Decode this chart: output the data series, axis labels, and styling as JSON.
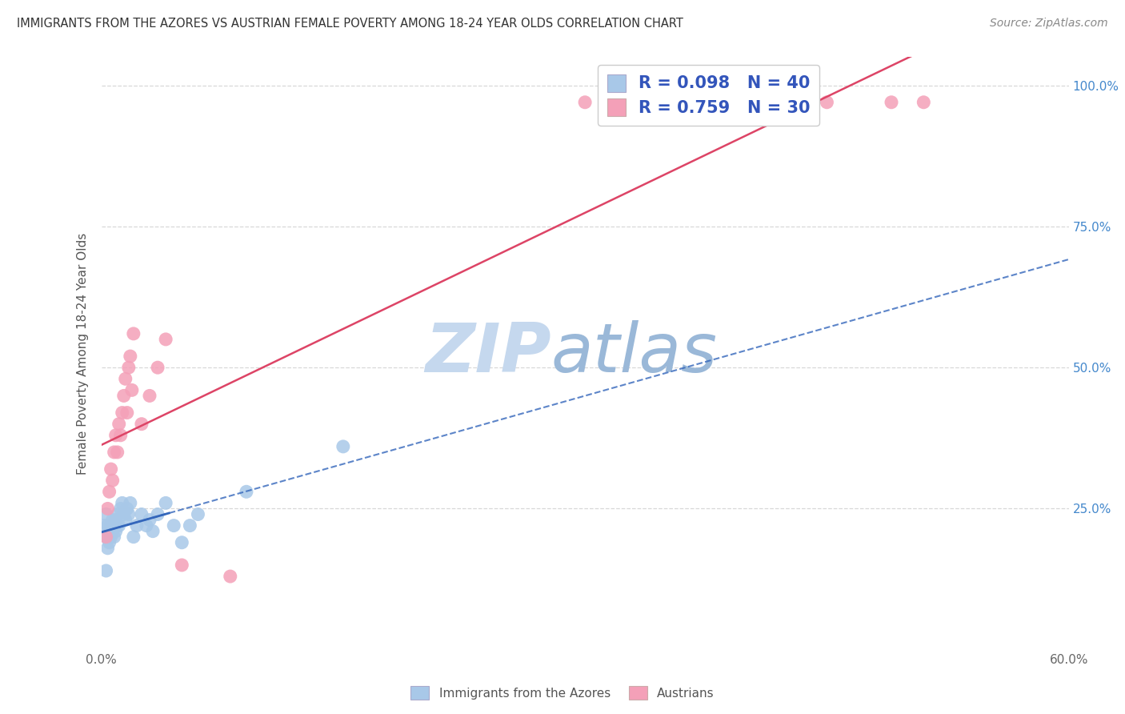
{
  "title": "IMMIGRANTS FROM THE AZORES VS AUSTRIAN FEMALE POVERTY AMONG 18-24 YEAR OLDS CORRELATION CHART",
  "source": "Source: ZipAtlas.com",
  "ylabel": "Female Poverty Among 18-24 Year Olds",
  "xlim": [
    0.0,
    0.6
  ],
  "ylim": [
    0.0,
    1.05
  ],
  "blue_R": 0.098,
  "blue_N": 40,
  "pink_R": 0.759,
  "pink_N": 30,
  "blue_color": "#a8c8e8",
  "pink_color": "#f4a0b8",
  "blue_line_color": "#3366bb",
  "pink_line_color": "#dd4466",
  "legend_color": "#3355bb",
  "watermark_zip_color": "#c5d8ee",
  "watermark_atlas_color": "#9ab8d8",
  "grid_color": "#d8d8d8",
  "blue_x": [
    0.002,
    0.003,
    0.003,
    0.004,
    0.004,
    0.005,
    0.005,
    0.006,
    0.006,
    0.007,
    0.007,
    0.008,
    0.008,
    0.009,
    0.009,
    0.01,
    0.01,
    0.011,
    0.012,
    0.013,
    0.014,
    0.015,
    0.016,
    0.017,
    0.018,
    0.02,
    0.022,
    0.025,
    0.028,
    0.03,
    0.032,
    0.035,
    0.04,
    0.045,
    0.05,
    0.055,
    0.06,
    0.09,
    0.15,
    0.003
  ],
  "blue_y": [
    0.22,
    0.2,
    0.24,
    0.18,
    0.22,
    0.19,
    0.21,
    0.2,
    0.22,
    0.21,
    0.23,
    0.2,
    0.22,
    0.21,
    0.23,
    0.22,
    0.24,
    0.22,
    0.25,
    0.26,
    0.24,
    0.23,
    0.25,
    0.24,
    0.26,
    0.2,
    0.22,
    0.24,
    0.22,
    0.23,
    0.21,
    0.24,
    0.26,
    0.22,
    0.19,
    0.22,
    0.24,
    0.28,
    0.36,
    0.14
  ],
  "pink_x": [
    0.003,
    0.004,
    0.005,
    0.006,
    0.007,
    0.008,
    0.009,
    0.01,
    0.011,
    0.012,
    0.013,
    0.014,
    0.015,
    0.016,
    0.017,
    0.018,
    0.019,
    0.02,
    0.025,
    0.03,
    0.035,
    0.04,
    0.05,
    0.08,
    0.3,
    0.38,
    0.42,
    0.45,
    0.49,
    0.51
  ],
  "pink_y": [
    0.2,
    0.25,
    0.28,
    0.32,
    0.3,
    0.35,
    0.38,
    0.35,
    0.4,
    0.38,
    0.42,
    0.45,
    0.48,
    0.42,
    0.5,
    0.52,
    0.46,
    0.56,
    0.4,
    0.45,
    0.5,
    0.55,
    0.15,
    0.13,
    0.97,
    0.97,
    0.97,
    0.97,
    0.97,
    0.97
  ],
  "blue_trend_x_start": 0.0,
  "blue_trend_x_end": 0.6,
  "pink_trend_x_start": 0.0,
  "pink_trend_x_end": 0.6
}
